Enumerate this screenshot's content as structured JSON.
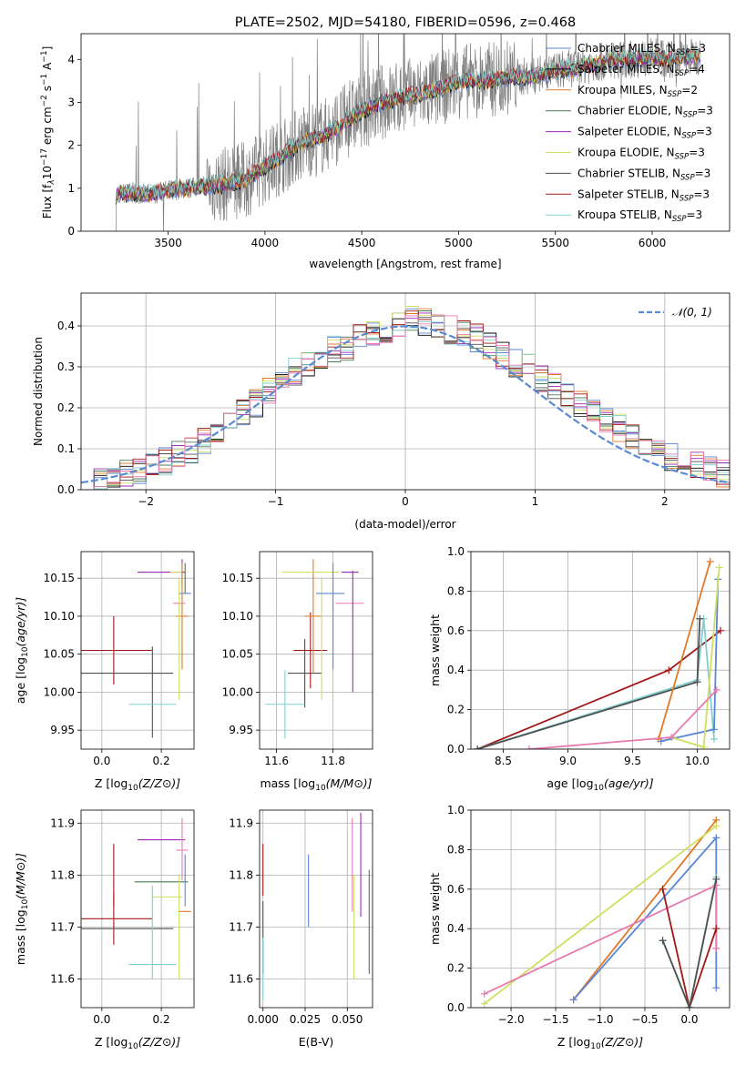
{
  "figure_title": "PLATE=2502, MJD=54180, FIBERID=0596, z=0.468",
  "colors": {
    "chabrier_miles": "#5a86d6",
    "salpeter_miles": "#000000",
    "kroupa_miles": "#e07a2a",
    "chabrier_elodie": "#4a7a58",
    "salpeter_elodie": "#9a2ab8",
    "kroupa_elodie": "#cfe060",
    "chabrier_stelib": "#505050",
    "salpeter_stelib": "#a01818",
    "kroupa_stelib": "#80d0d0",
    "pink": "#e87ab0",
    "spectrum_data": "#808080",
    "gaussian": "#5a8ad2",
    "grid": "#b0b0b0"
  },
  "chart_data": [
    {
      "id": "spectrum",
      "type": "line",
      "title": "PLATE=2502, MJD=54180, FIBERID=0596, z=0.468",
      "xlabel": "wavelength [Angstrom, rest frame]",
      "ylabel_parts": [
        "Flux [f",
        "λ",
        "10",
        "−17",
        " erg cm",
        "−2",
        " s",
        "−1",
        " A",
        "−1",
        "]"
      ],
      "xlim": [
        3050,
        6400
      ],
      "ylim": [
        0,
        4.6
      ],
      "xticks": [
        3500,
        4000,
        4500,
        5000,
        5500,
        6000
      ],
      "yticks": [
        0,
        1,
        2,
        3,
        4
      ],
      "legend_position": "top-right",
      "grid": false,
      "legend": [
        {
          "label": "Chabrier MILES, N",
          "sub": "SSP",
          "suffix": "=3",
          "color": "#5a86d6"
        },
        {
          "label": "Salpeter MILES, N",
          "sub": "SSP",
          "suffix": "=4",
          "color": "#000000"
        },
        {
          "label": "Kroupa MILES, N",
          "sub": "SSP",
          "suffix": "=2",
          "color": "#e07a2a"
        },
        {
          "label": "Chabrier ELODIE, N",
          "sub": "SSP",
          "suffix": "=3",
          "color": "#4a7a58"
        },
        {
          "label": "Salpeter ELODIE, N",
          "sub": "SSP",
          "suffix": "=3",
          "color": "#9a2ab8"
        },
        {
          "label": "Kroupa ELODIE, N",
          "sub": "SSP",
          "suffix": "=3",
          "color": "#cfe060"
        },
        {
          "label": "Chabrier STELIB, N",
          "sub": "SSP",
          "suffix": "=3",
          "color": "#505050"
        },
        {
          "label": "Salpeter STELIB, N",
          "sub": "SSP",
          "suffix": "=3",
          "color": "#a01818"
        },
        {
          "label": "Kroupa STELIB, N",
          "sub": "SSP",
          "suffix": "=3",
          "color": "#80d0d0"
        }
      ],
      "continuum": [
        [
          3230,
          0.85
        ],
        [
          3300,
          0.9
        ],
        [
          3400,
          0.85
        ],
        [
          3500,
          0.95
        ],
        [
          3600,
          1.0
        ],
        [
          3700,
          1.05
        ],
        [
          3800,
          1.1
        ],
        [
          3900,
          1.2
        ],
        [
          4000,
          1.5
        ],
        [
          4100,
          1.8
        ],
        [
          4200,
          2.1
        ],
        [
          4300,
          2.2
        ],
        [
          4400,
          2.5
        ],
        [
          4500,
          2.8
        ],
        [
          4600,
          3.0
        ],
        [
          4700,
          3.1
        ],
        [
          4800,
          3.2
        ],
        [
          4900,
          3.3
        ],
        [
          5000,
          3.5
        ],
        [
          5100,
          3.5
        ],
        [
          5200,
          3.55
        ],
        [
          5300,
          3.6
        ],
        [
          5400,
          3.6
        ],
        [
          5500,
          3.75
        ],
        [
          5600,
          3.8
        ],
        [
          5700,
          3.9
        ],
        [
          5800,
          4.0
        ],
        [
          5900,
          4.0
        ],
        [
          6000,
          4.05
        ],
        [
          6100,
          4.0
        ],
        [
          6200,
          4.05
        ],
        [
          6250,
          4.1
        ]
      ],
      "data_range": [
        3230,
        6250
      ]
    },
    {
      "id": "residuals",
      "type": "step",
      "xlabel": "(data-model)/error",
      "ylabel": "Normed distribution",
      "xlim": [
        -2.5,
        2.5
      ],
      "ylim": [
        0,
        0.48
      ],
      "xticks": [
        -2,
        -1,
        0,
        1,
        2
      ],
      "yticks": [
        0.0,
        0.1,
        0.2,
        0.3,
        0.4
      ],
      "grid": true,
      "legend_position": "top-right",
      "gaussian_label": "𝒩(0, 1)",
      "gaussian": {
        "mean": 0,
        "sigma": 1
      },
      "bin_width": 0.1,
      "bin_start": -2.5,
      "envelope": [
        0.02,
        0.02,
        0.03,
        0.04,
        0.05,
        0.06,
        0.07,
        0.09,
        0.1,
        0.12,
        0.14,
        0.16,
        0.19,
        0.21,
        0.24,
        0.26,
        0.29,
        0.31,
        0.33,
        0.34,
        0.35,
        0.37,
        0.38,
        0.39,
        0.4,
        0.42,
        0.41,
        0.4,
        0.39,
        0.38,
        0.37,
        0.35,
        0.33,
        0.31,
        0.3,
        0.27,
        0.25,
        0.23,
        0.21,
        0.19,
        0.17,
        0.15,
        0.13,
        0.11,
        0.1,
        0.08,
        0.07,
        0.06,
        0.05,
        0.04
      ]
    },
    {
      "id": "age-vs-z",
      "type": "scatter-errorbar",
      "xlabel": "Z [log10(Z/Z⊙)]",
      "ylabel": "age  [log10(age/yr)]",
      "xlim": [
        -0.07,
        0.31
      ],
      "ylim": [
        9.925,
        10.185
      ],
      "xticks": [
        0.0,
        0.2
      ],
      "yticks": [
        9.95,
        10.0,
        10.05,
        10.1,
        10.15
      ],
      "grid": true,
      "points": [
        {
          "x": 0.04,
          "y": 10.055,
          "xerr": 0.13,
          "yerr": 0.045,
          "color": "#a01818"
        },
        {
          "x": 0.0,
          "y": 10.025,
          "xerr": 0.24,
          "yerr": 0.0,
          "color": "#505050"
        },
        {
          "x": 0.17,
          "y": 10.0,
          "xerr": 0.0,
          "yerr": 0.06,
          "color": "#505050"
        },
        {
          "x": 0.17,
          "y": 9.984,
          "xerr": 0.08,
          "yerr": 0.0,
          "color": "#80d0d0"
        },
        {
          "x": 0.2,
          "y": 10.158,
          "xerr": 0.08,
          "yerr": 0.0,
          "color": "#9a2ab8"
        },
        {
          "x": 0.25,
          "y": 10.158,
          "xerr": 0.02,
          "yerr": 0.0,
          "color": "#cfe060"
        },
        {
          "x": 0.27,
          "y": 10.158,
          "xerr": 0.0,
          "yerr": 0.017,
          "color": "#9a2ab8"
        },
        {
          "x": 0.27,
          "y": 10.1,
          "xerr": 0.02,
          "yerr": 0.07,
          "color": "#e07a2a"
        },
        {
          "x": 0.28,
          "y": 10.13,
          "xerr": 0.02,
          "yerr": 0.0,
          "color": "#5a86d6"
        },
        {
          "x": 0.26,
          "y": 10.117,
          "xerr": 0.02,
          "yerr": 0.0,
          "color": "#e87ab0"
        },
        {
          "x": 0.26,
          "y": 10.07,
          "xerr": 0.0,
          "yerr": 0.08,
          "color": "#cfe060"
        },
        {
          "x": 0.28,
          "y": 10.15,
          "xerr": 0.0,
          "yerr": 0.02,
          "color": "#4a7a58"
        }
      ]
    },
    {
      "id": "age-vs-mass",
      "type": "scatter-errorbar",
      "xlabel": "mass [log10(M/M⊙)]",
      "ylabel": "",
      "xlim": [
        11.54,
        11.94
      ],
      "ylim": [
        9.925,
        10.185
      ],
      "xticks": [
        11.6,
        11.8
      ],
      "yticks": [
        9.95,
        10.0,
        10.05,
        10.1,
        10.15
      ],
      "grid": true,
      "points": [
        {
          "x": 11.7,
          "y": 10.025,
          "xerr": 0.06,
          "yerr": 0.045,
          "color": "#505050"
        },
        {
          "x": 11.72,
          "y": 10.055,
          "xerr": 0.06,
          "yerr": 0.05,
          "color": "#a01818"
        },
        {
          "x": 11.63,
          "y": 9.984,
          "xerr": 0.07,
          "yerr": 0.045,
          "color": "#80d0d0"
        },
        {
          "x": 11.73,
          "y": 10.1,
          "xerr": 0.03,
          "yerr": 0.075,
          "color": "#e07a2a"
        },
        {
          "x": 11.76,
          "y": 10.07,
          "xerr": 0.0,
          "yerr": 0.08,
          "color": "#cfe060"
        },
        {
          "x": 11.72,
          "y": 10.158,
          "xerr": 0.1,
          "yerr": 0.0,
          "color": "#cfe060"
        },
        {
          "x": 11.79,
          "y": 10.13,
          "xerr": 0.05,
          "yerr": 0.0,
          "color": "#5a86d6"
        },
        {
          "x": 11.8,
          "y": 10.1,
          "xerr": 0.0,
          "yerr": 0.07,
          "color": "#5a86d6"
        },
        {
          "x": 11.86,
          "y": 10.158,
          "xerr": 0.03,
          "yerr": 0.0,
          "color": "#9a2ab8"
        },
        {
          "x": 11.86,
          "y": 10.117,
          "xerr": 0.05,
          "yerr": 0.0,
          "color": "#e87ab0"
        },
        {
          "x": 11.87,
          "y": 10.08,
          "xerr": 0.0,
          "yerr": 0.08,
          "color": "#9a2ab8"
        }
      ]
    },
    {
      "id": "mass-weight-vs-age",
      "type": "line",
      "xlabel": "age  [log10(age/yr)]",
      "ylabel": "mass weight",
      "xlim": [
        8.25,
        10.25
      ],
      "ylim": [
        0,
        1.0
      ],
      "xticks": [
        8.5,
        9.0,
        9.5,
        10.0
      ],
      "yticks": [
        0.0,
        0.2,
        0.4,
        0.6,
        0.8,
        1.0
      ],
      "grid": true,
      "series": [
        {
          "color": "#a01818",
          "points": [
            [
              8.3,
              0.0
            ],
            [
              9.78,
              0.4
            ],
            [
              10.18,
              0.6
            ]
          ]
        },
        {
          "color": "#80d0d0",
          "points": [
            [
              8.3,
              0.0
            ],
            [
              10.0,
              0.35
            ],
            [
              10.05,
              0.66
            ],
            [
              10.13,
              0.05
            ]
          ]
        },
        {
          "color": "#505050",
          "points": [
            [
              8.3,
              0.0
            ],
            [
              10.0,
              0.34
            ],
            [
              10.02,
              0.66
            ]
          ]
        },
        {
          "color": "#e07a2a",
          "points": [
            [
              9.7,
              0.05
            ],
            [
              10.1,
              0.95
            ]
          ]
        },
        {
          "color": "#5a86d6",
          "points": [
            [
              9.72,
              0.04
            ],
            [
              10.13,
              0.1
            ],
            [
              10.16,
              0.86
            ]
          ]
        },
        {
          "color": "#cfe060",
          "points": [
            [
              9.8,
              0.06
            ],
            [
              10.05,
              0.01
            ],
            [
              10.17,
              0.92
            ]
          ]
        },
        {
          "color": "#e87ab0",
          "points": [
            [
              8.7,
              0.0
            ],
            [
              9.8,
              0.06
            ],
            [
              10.15,
              0.3
            ]
          ]
        }
      ]
    },
    {
      "id": "mass-vs-z",
      "type": "scatter-errorbar",
      "xlabel": "Z [log10(Z/Z⊙)]",
      "ylabel": "mass [log10(M/M⊙)]",
      "xlim": [
        -0.07,
        0.31
      ],
      "ylim": [
        11.545,
        11.925
      ],
      "xticks": [
        0.0,
        0.2
      ],
      "yticks": [
        11.6,
        11.7,
        11.8,
        11.9
      ],
      "grid": true,
      "points": [
        {
          "x": 0.04,
          "y": 11.716,
          "xerr": 0.13,
          "yerr": 0.05,
          "color": "#a01818"
        },
        {
          "x": 0.04,
          "y": 11.8,
          "xerr": 0.0,
          "yerr": 0.06,
          "color": "#a01818"
        },
        {
          "x": 0.0,
          "y": 11.697,
          "xerr": 0.24,
          "yerr": 0.0,
          "color": "#505050"
        },
        {
          "x": 0.17,
          "y": 11.628,
          "xerr": 0.08,
          "yerr": 0.0,
          "color": "#80d0d0"
        },
        {
          "x": 0.17,
          "y": 11.69,
          "xerr": 0.0,
          "yerr": 0.09,
          "color": "#80d0d0"
        },
        {
          "x": 0.2,
          "y": 11.787,
          "xerr": 0.09,
          "yerr": 0.0,
          "color": "#4a7a58"
        },
        {
          "x": 0.2,
          "y": 11.868,
          "xerr": 0.08,
          "yerr": 0.0,
          "color": "#9a2ab8"
        },
        {
          "x": 0.22,
          "y": 11.758,
          "xerr": 0.05,
          "yerr": 0.0,
          "color": "#cfe060"
        },
        {
          "x": 0.26,
          "y": 11.7,
          "xerr": 0.0,
          "yerr": 0.1,
          "color": "#cfe060"
        },
        {
          "x": 0.27,
          "y": 11.848,
          "xerr": 0.02,
          "yerr": 0.0,
          "color": "#e87ab0"
        },
        {
          "x": 0.27,
          "y": 11.85,
          "xerr": 0.0,
          "yerr": 0.06,
          "color": "#e87ab0"
        },
        {
          "x": 0.28,
          "y": 11.73,
          "xerr": 0.02,
          "yerr": 0.0,
          "color": "#e07a2a"
        },
        {
          "x": 0.28,
          "y": 11.79,
          "xerr": 0.0,
          "yerr": 0.05,
          "color": "#5a86d6"
        }
      ]
    },
    {
      "id": "mass-vs-ebv",
      "type": "scatter-errorbar",
      "xlabel": "E(B-V)",
      "ylabel": "",
      "xlim": [
        -0.002,
        0.065
      ],
      "ylim": [
        11.545,
        11.925
      ],
      "xticks": [
        0.0,
        0.025,
        0.05
      ],
      "yticks": [
        11.6,
        11.7,
        11.8,
        11.9
      ],
      "grid": true,
      "points": [
        {
          "x": 0.0,
          "y": 11.81,
          "xerr": 0.0,
          "yerr": 0.05,
          "color": "#a01818"
        },
        {
          "x": 0.0,
          "y": 11.68,
          "xerr": 0.0,
          "yerr": 0.07,
          "color": "#505050"
        },
        {
          "x": 0.0,
          "y": 11.62,
          "xerr": 0.0,
          "yerr": 0.06,
          "color": "#80d0d0"
        },
        {
          "x": 0.027,
          "y": 11.77,
          "xerr": 0.0,
          "yerr": 0.07,
          "color": "#5a86d6"
        },
        {
          "x": 0.053,
          "y": 11.82,
          "xerr": 0.0,
          "yerr": 0.09,
          "color": "#e87ab0"
        },
        {
          "x": 0.054,
          "y": 11.7,
          "xerr": 0.0,
          "yerr": 0.1,
          "color": "#cfe060"
        },
        {
          "x": 0.058,
          "y": 11.82,
          "xerr": 0.0,
          "yerr": 0.1,
          "color": "#9a2ab8"
        },
        {
          "x": 0.063,
          "y": 11.71,
          "xerr": 0.0,
          "yerr": 0.1,
          "color": "#4a7a58"
        }
      ]
    },
    {
      "id": "mass-weight-vs-z",
      "type": "line",
      "xlabel": "Z [log10(Z/Z⊙)]",
      "ylabel": "mass weight",
      "xlim": [
        -2.45,
        0.45
      ],
      "ylim": [
        0,
        1.0
      ],
      "xticks": [
        -2.0,
        -1.5,
        -1.0,
        -0.5,
        0.0
      ],
      "yticks": [
        0.0,
        0.2,
        0.4,
        0.6,
        0.8,
        1.0
      ],
      "grid": true,
      "series": [
        {
          "color": "#e07a2a",
          "points": [
            [
              -1.3,
              0.04
            ],
            [
              0.3,
              0.95
            ]
          ]
        },
        {
          "color": "#5a86d6",
          "points": [
            [
              -1.3,
              0.04
            ],
            [
              0.3,
              0.86
            ],
            [
              0.3,
              0.1
            ]
          ]
        },
        {
          "color": "#cfe060",
          "points": [
            [
              -2.3,
              0.02
            ],
            [
              0.3,
              0.92
            ]
          ]
        },
        {
          "color": "#e87ab0",
          "points": [
            [
              -2.3,
              0.07
            ],
            [
              0.3,
              0.62
            ],
            [
              0.3,
              0.3
            ]
          ]
        },
        {
          "color": "#a01818",
          "points": [
            [
              -0.3,
              0.6
            ],
            [
              0.0,
              0.0
            ],
            [
              0.3,
              0.4
            ]
          ]
        },
        {
          "color": "#80d0d0",
          "points": [
            [
              -0.3,
              0.34
            ],
            [
              0.0,
              0.0
            ],
            [
              0.3,
              0.66
            ]
          ]
        },
        {
          "color": "#505050",
          "points": [
            [
              -0.3,
              0.34
            ],
            [
              0.0,
              0.0
            ],
            [
              0.3,
              0.65
            ]
          ]
        }
      ]
    }
  ]
}
